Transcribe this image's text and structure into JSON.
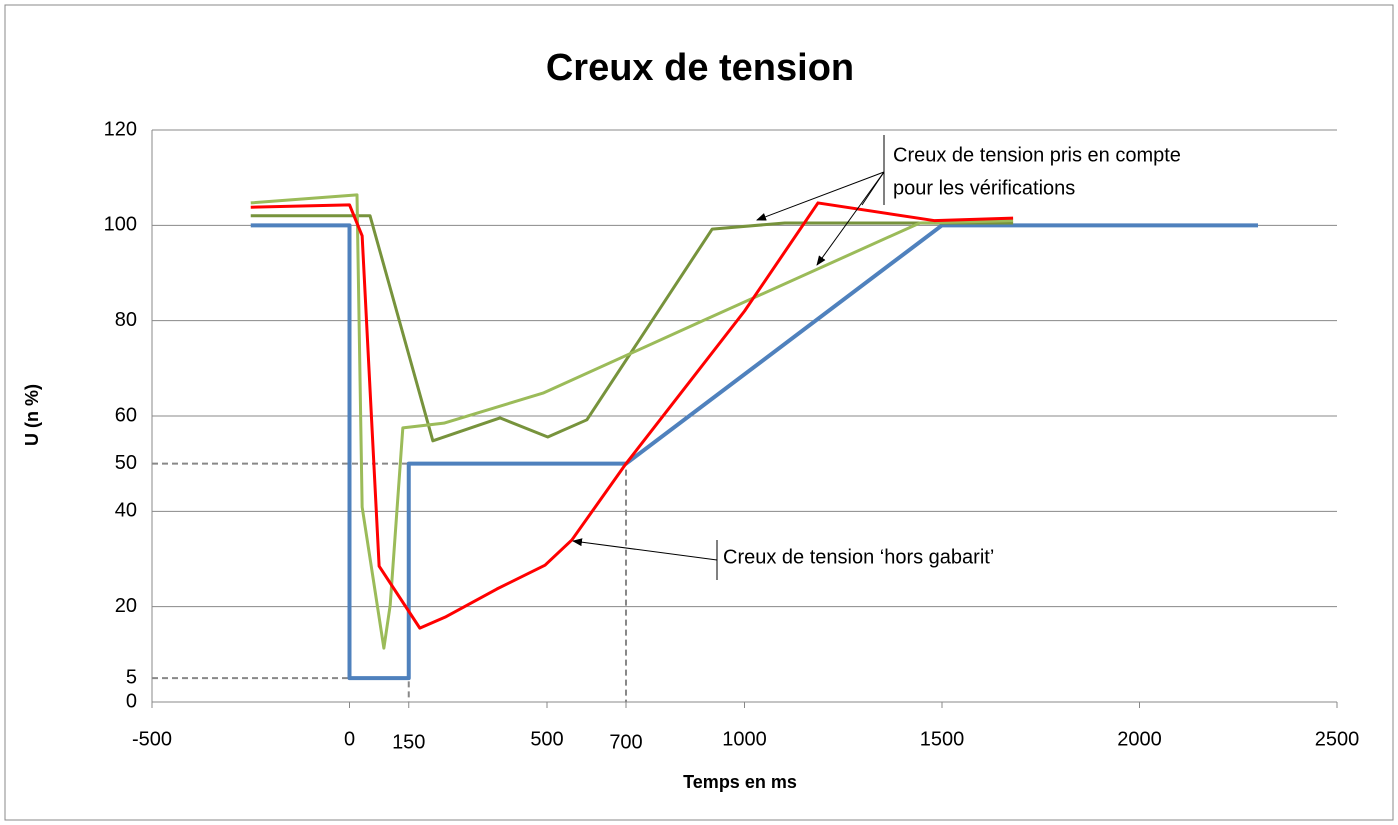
{
  "chart_data": {
    "type": "line",
    "title": "Creux de tension",
    "xlabel": "Temps en ms",
    "ylabel": "U (n %)",
    "xlim": [
      -500,
      2500
    ],
    "xticks": [
      -500,
      0,
      150,
      500,
      700,
      1000,
      1500,
      2000,
      2500
    ],
    "ylim": [
      0,
      120
    ],
    "yticks": [
      0,
      5,
      20,
      40,
      50,
      60,
      80,
      100,
      120
    ],
    "grid": true,
    "guides": [
      {
        "x": 150,
        "y": 5
      },
      {
        "x": 700,
        "y": 50
      }
    ],
    "series": [
      {
        "color": "#4f81bd",
        "width": 4,
        "x": [
          -250,
          0,
          0,
          150,
          150,
          700,
          1500,
          2300
        ],
        "values": [
          100,
          100,
          5,
          5,
          50,
          50,
          100,
          100
        ]
      },
      {
        "color": "#77933c",
        "width": 3,
        "x": [
          -250,
          52,
          211,
          381,
          502,
          601,
          918,
          1102,
          1680
        ],
        "values": [
          102,
          102,
          54.8,
          59.6,
          55.6,
          59.2,
          99.2,
          100.5,
          100.5
        ]
      },
      {
        "color": "#9bbb59",
        "width": 3,
        "x": [
          -250,
          19,
          32,
          87,
          103,
          135,
          239,
          490,
          895,
          1444,
          1680
        ],
        "values": [
          104.7,
          106.4,
          40.9,
          11.3,
          20.3,
          57.5,
          58.5,
          64.8,
          80,
          100.5,
          101
        ]
      },
      {
        "color": "#ff0000",
        "width": 3,
        "x": [
          -250,
          0,
          32,
          75,
          178,
          242,
          373,
          495,
          563,
          700,
          1000,
          1186,
          1480,
          1680
        ],
        "values": [
          103.8,
          104.3,
          97.8,
          28.5,
          15.5,
          17.8,
          23.7,
          28.7,
          34,
          50,
          82,
          104.7,
          101,
          101.5
        ]
      }
    ],
    "annotations": [
      "Creux de tension pris en compte",
      "pour les vérifications",
      "Creux de tension ‘hors gabarit’"
    ]
  }
}
